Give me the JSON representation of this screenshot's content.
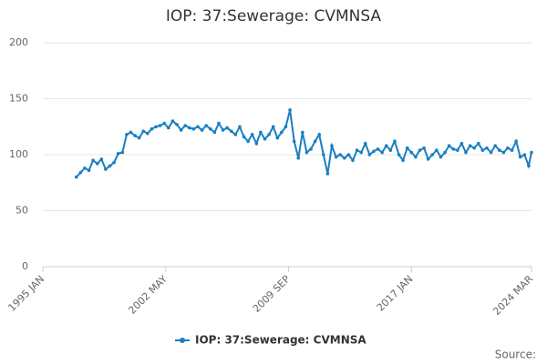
{
  "chart_data": {
    "type": "line",
    "title": "IOP: 37:Sewerage: CVMNSA",
    "source": "Source:",
    "x": [
      "1997-01",
      "1997-04",
      "1997-07",
      "1997-10",
      "1998-01",
      "1998-04",
      "1998-07",
      "1998-10",
      "1999-01",
      "1999-04",
      "1999-07",
      "1999-10",
      "2000-01",
      "2000-04",
      "2000-07",
      "2000-10",
      "2001-01",
      "2001-04",
      "2001-07",
      "2001-10",
      "2002-01",
      "2002-04",
      "2002-07",
      "2002-10",
      "2003-01",
      "2003-04",
      "2003-07",
      "2003-10",
      "2004-01",
      "2004-04",
      "2004-07",
      "2004-10",
      "2005-01",
      "2005-04",
      "2005-07",
      "2005-10",
      "2006-01",
      "2006-04",
      "2006-07",
      "2006-10",
      "2007-01",
      "2007-04",
      "2007-07",
      "2007-10",
      "2008-01",
      "2008-04",
      "2008-07",
      "2008-10",
      "2009-01",
      "2009-04",
      "2009-07",
      "2009-10",
      "2010-01",
      "2010-04",
      "2010-07",
      "2010-10",
      "2011-01",
      "2011-04",
      "2011-07",
      "2011-10",
      "2012-01",
      "2012-04",
      "2012-07",
      "2012-10",
      "2013-01",
      "2013-04",
      "2013-07",
      "2013-10",
      "2014-01",
      "2014-04",
      "2014-07",
      "2014-10",
      "2015-01",
      "2015-04",
      "2015-07",
      "2015-10",
      "2016-01",
      "2016-04",
      "2016-07",
      "2016-10",
      "2017-01",
      "2017-04",
      "2017-07",
      "2017-10",
      "2018-01",
      "2018-04",
      "2018-07",
      "2018-10",
      "2019-01",
      "2019-04",
      "2019-07",
      "2019-10",
      "2020-01",
      "2020-04",
      "2020-07",
      "2020-10",
      "2021-01",
      "2021-04",
      "2021-07",
      "2021-10",
      "2022-01",
      "2022-04",
      "2022-07",
      "2022-10",
      "2023-01",
      "2023-04",
      "2023-07",
      "2023-10",
      "2024-01",
      "2024-03"
    ],
    "series": [
      {
        "name": "IOP: 37:Sewerage: CVMNSA",
        "color": "#1a7fc1",
        "values": [
          80,
          84,
          88,
          86,
          95,
          92,
          96,
          87,
          90,
          93,
          101,
          102,
          118,
          120,
          117,
          115,
          121,
          119,
          123,
          125,
          126,
          128,
          124,
          130,
          127,
          122,
          126,
          124,
          123,
          125,
          122,
          126,
          123,
          120,
          128,
          122,
          124,
          121,
          118,
          125,
          116,
          112,
          118,
          110,
          120,
          114,
          118,
          125,
          115,
          120,
          125,
          140,
          112,
          97,
          120,
          102,
          105,
          112,
          118,
          100,
          83,
          108,
          98,
          100,
          97,
          100,
          95,
          104,
          102,
          110,
          100,
          103,
          105,
          102,
          108,
          104,
          112,
          100,
          95,
          106,
          102,
          98,
          104,
          106,
          96,
          100,
          104,
          98,
          102,
          108,
          105,
          104,
          110,
          102,
          108,
          106,
          110,
          104,
          106,
          102,
          108,
          104,
          102,
          106,
          104,
          112,
          98,
          100,
          90,
          102
        ]
      }
    ],
    "xlim": [
      "1995-01",
      "2024-03"
    ],
    "xticks": [
      {
        "value": "1995-01",
        "label": "1995 JAN"
      },
      {
        "value": "2002-05",
        "label": "2002 MAY"
      },
      {
        "value": "2009-09",
        "label": "2009 SEP"
      },
      {
        "value": "2017-01",
        "label": "2017 JAN"
      },
      {
        "value": "2024-03",
        "label": "2024 MAR"
      }
    ],
    "ylim": [
      0,
      200
    ],
    "yticks": [
      0,
      50,
      100,
      150,
      200
    ],
    "grid": true
  }
}
